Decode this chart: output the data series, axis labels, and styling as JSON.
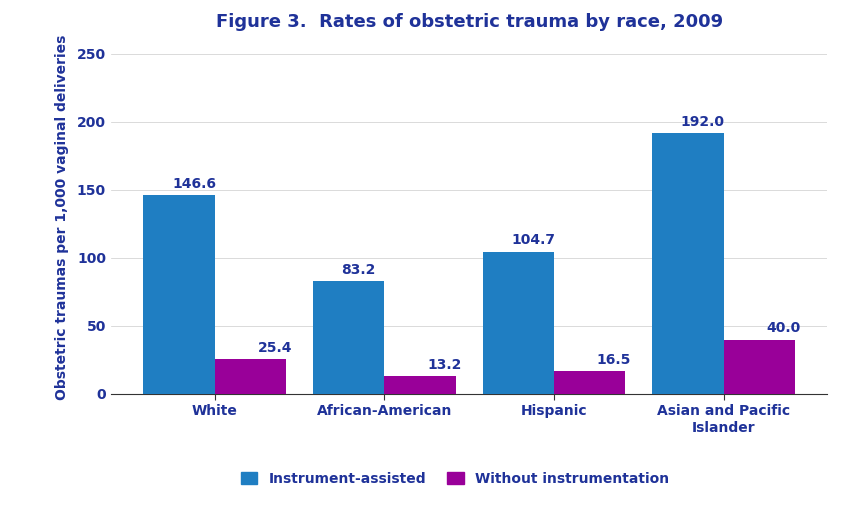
{
  "title": "Figure 3.  Rates of obstetric trauma by race, 2009",
  "categories": [
    "White",
    "African-American",
    "Hispanic",
    "Asian and Pacific\nIslander"
  ],
  "instrument_assisted": [
    146.6,
    83.2,
    104.7,
    192.0
  ],
  "without_instrumentation": [
    25.4,
    13.2,
    16.5,
    40.0
  ],
  "bar_color_blue": "#1F7EC2",
  "bar_color_purple": "#990099",
  "ylabel": "Obstetric traumas per 1,000 vaginal deliveries",
  "ylim": [
    0,
    260
  ],
  "yticks": [
    0,
    50,
    100,
    150,
    200,
    250
  ],
  "legend_labels": [
    "Instrument-assisted",
    "Without instrumentation"
  ],
  "title_color": "#1F3299",
  "label_color": "#1F3299",
  "axis_color": "#333333",
  "bar_width": 0.42,
  "title_fontsize": 13,
  "label_fontsize": 10,
  "tick_fontsize": 10,
  "annotation_fontsize": 10,
  "background_color": "#ffffff"
}
